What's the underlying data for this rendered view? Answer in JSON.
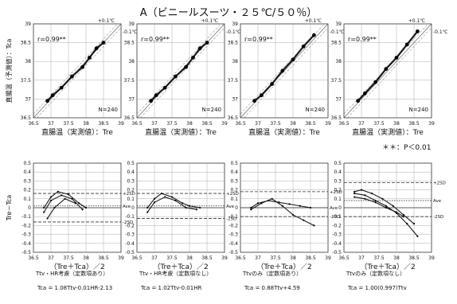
{
  "page_title": "A（ビニールスーツ・２５℃/５０％）",
  "significance_note": "＊＊：P＜0.01",
  "colors": {
    "line": "#1a1a1a",
    "point": "#000000",
    "grid": "#999999",
    "background": "#ffffff"
  },
  "chart_data": [
    {
      "type": "scatter",
      "panel": "top-1",
      "ylabel": "直腸温（予測値）：Tca",
      "xlabel": "直腸温（実測値）：Tre",
      "xlim": [
        36.5,
        39
      ],
      "ylim": [
        36.5,
        39
      ],
      "x_ticks": [
        "36.5",
        "37",
        "37.5",
        "38",
        "38.5",
        "39"
      ],
      "y_ticks": [
        "39",
        "38.5",
        "38",
        "37.5",
        "37",
        "36.5"
      ],
      "r_label": "r=0.99**",
      "n_label": "N=240",
      "band_labels": [
        "+0.1℃",
        "-0.1℃"
      ],
      "series": [
        {
          "values": [
            [
              36.9,
              36.95
            ],
            [
              37.05,
              37.1
            ],
            [
              37.3,
              37.3
            ],
            [
              37.6,
              37.6
            ],
            [
              37.9,
              37.85
            ],
            [
              38.1,
              38.1
            ],
            [
              38.3,
              38.35
            ],
            [
              38.5,
              38.5
            ]
          ]
        }
      ]
    },
    {
      "type": "scatter",
      "panel": "top-2",
      "ylabel": "",
      "xlabel": "直腸温（実測値）：Tre",
      "xlim": [
        36.5,
        39
      ],
      "ylim": [
        36.5,
        39
      ],
      "x_ticks": [
        "36.5",
        "37",
        "37.5",
        "38",
        "38.5",
        "39"
      ],
      "y_ticks": [
        "39",
        "38.5",
        "38",
        "37.5",
        "37",
        "36.5"
      ],
      "r_label": "r=0.99**",
      "n_label": "N=240",
      "band_labels": [
        "+0.1℃",
        "-0.1℃"
      ],
      "series": [
        {
          "values": [
            [
              36.9,
              36.95
            ],
            [
              37.05,
              37.1
            ],
            [
              37.3,
              37.3
            ],
            [
              37.6,
              37.6
            ],
            [
              37.9,
              37.85
            ],
            [
              38.1,
              38.1
            ],
            [
              38.3,
              38.35
            ],
            [
              38.5,
              38.5
            ]
          ]
        }
      ]
    },
    {
      "type": "scatter",
      "panel": "top-3",
      "ylabel": "",
      "xlabel": "直腸温（実測値）：Tre",
      "xlim": [
        36.5,
        39
      ],
      "ylim": [
        36.5,
        39
      ],
      "x_ticks": [
        "36.5",
        "37",
        "37.5",
        "38",
        "38.5",
        "39"
      ],
      "y_ticks": [
        "39",
        "38.5",
        "38",
        "37.5",
        "37",
        "36.5"
      ],
      "r_label": "r=0.99**",
      "n_label": "N=240",
      "band_labels": [
        "+0.1℃",
        "-0.1℃"
      ],
      "series": [
        {
          "values": [
            [
              36.9,
              36.95
            ],
            [
              37.1,
              37.1
            ],
            [
              37.4,
              37.4
            ],
            [
              37.7,
              37.75
            ],
            [
              38.0,
              38.05
            ],
            [
              38.3,
              38.4
            ],
            [
              38.6,
              38.7
            ]
          ]
        }
      ]
    },
    {
      "type": "scatter",
      "panel": "top-4",
      "ylabel": "",
      "xlabel": "直腸温（実測値）：Tre",
      "xlim": [
        36.5,
        39
      ],
      "ylim": [
        36.5,
        39
      ],
      "x_ticks": [
        "36.5",
        "37",
        "37.5",
        "38",
        "38.5",
        "39"
      ],
      "y_ticks": [
        "39",
        "38.5",
        "38",
        "37.5",
        "37",
        "36.5"
      ],
      "r_label": "r=0.99**",
      "n_label": "N=240",
      "band_labels": [
        "+0.1℃",
        "-0.1℃"
      ],
      "series": [
        {
          "values": [
            [
              36.9,
              36.95
            ],
            [
              37.1,
              37.15
            ],
            [
              37.4,
              37.45
            ],
            [
              37.7,
              37.8
            ],
            [
              38.0,
              38.1
            ],
            [
              38.3,
              38.45
            ],
            [
              38.6,
              38.8
            ]
          ]
        }
      ]
    },
    {
      "type": "line",
      "panel": "bottom-1",
      "ylabel": "Tre－Tca",
      "xlabel": "（Tre＋Tca）／2",
      "xlim": [
        36.5,
        39
      ],
      "ylim": [
        -0.5,
        0.5
      ],
      "x_ticks": [
        "36.5",
        "37",
        "37.5",
        "38",
        "38.5",
        "39"
      ],
      "y_ticks": [
        "0.5",
        "0.4",
        "0.3",
        "0.2",
        "0.1",
        "0",
        "-0.1",
        "-0.2",
        "-0.3",
        "-0.4",
        "-0.5"
      ],
      "ref_labels": [
        "+2SD",
        "Ave",
        "-2SD"
      ],
      "ref_values": [
        0.16,
        0.02,
        -0.16
      ],
      "series": [
        {
          "x": [
            36.8,
            37.0,
            37.2,
            37.5,
            37.8,
            38.0
          ],
          "y": [
            0.0,
            0.12,
            0.18,
            0.15,
            0.05,
            0.0
          ]
        },
        {
          "x": [
            36.8,
            37.0,
            37.3,
            37.6,
            37.9
          ],
          "y": [
            -0.05,
            0.08,
            0.14,
            0.1,
            -0.02
          ]
        },
        {
          "x": [
            36.9,
            37.1,
            37.4,
            37.7
          ],
          "y": [
            -0.12,
            0.0,
            0.1,
            0.05
          ]
        }
      ]
    },
    {
      "type": "line",
      "panel": "bottom-2",
      "ylabel": "",
      "xlabel": "（Tre＋Tca）／2",
      "xlim": [
        36.5,
        39
      ],
      "ylim": [
        -0.5,
        0.5
      ],
      "x_ticks": [
        "36.5",
        "37",
        "37.5",
        "38",
        "38.5",
        "39"
      ],
      "y_ticks": [
        "0.5",
        "0.4",
        "0.3",
        "0.2",
        "0.1",
        "0",
        "-0.1",
        "-0.2",
        "-0.3",
        "-0.4",
        "-0.5"
      ],
      "ref_labels": [
        "+2SD",
        "Ave",
        "-2SD"
      ],
      "ref_values": [
        0.16,
        0.02,
        -0.12
      ],
      "series": [
        {
          "x": [
            36.8,
            37.0,
            37.2,
            37.5,
            37.8,
            38.0,
            38.3
          ],
          "y": [
            0.0,
            0.1,
            0.16,
            0.12,
            0.05,
            0.02,
            0.0
          ]
        },
        {
          "x": [
            36.8,
            37.0,
            37.3,
            37.6,
            37.9,
            38.2
          ],
          "y": [
            -0.05,
            0.06,
            0.12,
            0.08,
            0.0,
            -0.02
          ]
        }
      ]
    },
    {
      "type": "line",
      "panel": "bottom-3",
      "ylabel": "",
      "xlabel": "（Tre＋Tca）／2",
      "xlim": [
        36.5,
        39
      ],
      "ylim": [
        -0.5,
        0.5
      ],
      "x_ticks": [
        "36.5",
        "37",
        "37.5",
        "38",
        "38.5",
        "39"
      ],
      "y_ticks": [
        "0.5",
        "0.4",
        "0.3",
        "0.2",
        "0.1",
        "0",
        "-0.1",
        "-0.2",
        "-0.3",
        "-0.4",
        "-0.5"
      ],
      "ref_labels": [
        "+2SD",
        "Ave",
        "-2SD"
      ],
      "ref_values": [
        0.18,
        0.0,
        -0.1
      ],
      "series": [
        {
          "x": [
            36.8,
            37.0,
            37.3,
            37.6,
            37.9,
            38.2,
            38.5
          ],
          "y": [
            0.0,
            0.05,
            0.08,
            0.06,
            0.04,
            0.02,
            0.0
          ]
        },
        {
          "x": [
            36.8,
            37.1,
            37.4,
            37.7,
            38.0,
            38.3,
            38.6
          ],
          "y": [
            -0.02,
            0.05,
            0.1,
            0.02,
            -0.08,
            -0.14,
            -0.2
          ]
        }
      ]
    },
    {
      "type": "line",
      "panel": "bottom-4",
      "ylabel": "",
      "xlabel": "（Tre＋Tca）／2",
      "xlim": [
        36.5,
        39
      ],
      "ylim": [
        -0.5,
        0.5
      ],
      "x_ticks": [
        "36.5",
        "37",
        "37.5",
        "38",
        "38.5",
        "39"
      ],
      "y_ticks": [
        "0.5",
        "0.4",
        "0.3",
        "0.2",
        "0.1",
        "0",
        "-0.1",
        "-0.2",
        "-0.3",
        "-0.4",
        "-0.5"
      ],
      "ref_labels": [
        "+2SD",
        "Ave",
        "-2SD"
      ],
      "ref_values": [
        0.28,
        0.08,
        -0.1
      ],
      "series": [
        {
          "x": [
            36.8,
            37.0,
            37.3,
            37.6,
            37.9,
            38.2,
            38.5
          ],
          "y": [
            0.18,
            0.2,
            0.16,
            0.1,
            0.02,
            -0.08,
            -0.18
          ]
        },
        {
          "x": [
            36.8,
            37.1,
            37.4,
            37.7,
            38.0,
            38.3,
            38.6
          ],
          "y": [
            0.16,
            0.14,
            0.08,
            0.02,
            -0.06,
            -0.18,
            -0.32
          ]
        },
        {
          "x": [
            36.8,
            37.1,
            37.4,
            37.7,
            38.0,
            38.2
          ],
          "y": [
            0.12,
            0.1,
            0.06,
            0.0,
            -0.05,
            -0.1
          ]
        }
      ]
    }
  ],
  "formulas": [
    {
      "heading": "Ttv・HR考慮（定数項あり）",
      "equation": "Tca = 1.08Ttv-0.01HR-2.13"
    },
    {
      "heading": "Ttv・HR考慮（定数項なし）",
      "equation": "Tca = 1.02Ttv-0.01HR"
    },
    {
      "heading": "Ttvのみ（定数項あり）",
      "equation": "Tca = 0.88Ttv+4.59"
    },
    {
      "heading": "Ttvのみ（定数項なし）",
      "equation": "Tca = 1.00(0.997)Ttv"
    }
  ]
}
